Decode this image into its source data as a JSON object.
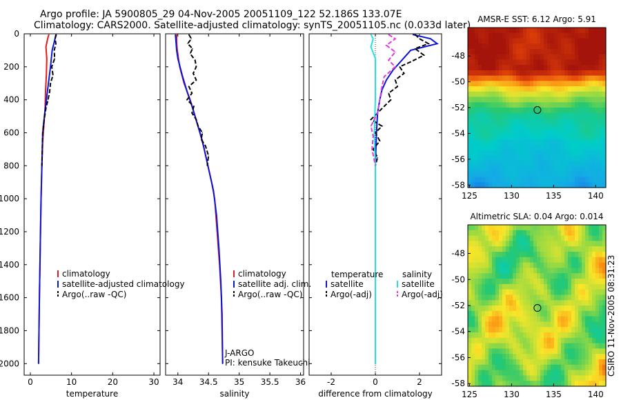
{
  "header": {
    "line1": "Argo profile: JA 5900805_29 04-Nov-2005 20051109_122 52.186S 133.07E",
    "line2": "Climatology: CARS2000. Satellite-adjusted climatology: synTS_20051105.nc (0.033d later)"
  },
  "credit": "CSIRO 11-Nov-2005 08:31:23",
  "colors": {
    "climatology": "#e41a1c",
    "satellite": "#0a14d8",
    "argo": "#000000",
    "sal_satellite": "#22e0e6",
    "sal_argo": "#e03ad8"
  },
  "chart_data": [
    {
      "type": "line",
      "id": "temp",
      "xlabel": "temperature",
      "ylabel": "",
      "xlim": [
        -1.5,
        31.5
      ],
      "ylim": [
        2070,
        0
      ],
      "xticks": [
        0,
        10,
        20,
        30
      ],
      "yticks": [
        0,
        200,
        400,
        600,
        800,
        1000,
        1200,
        1400,
        1600,
        1800,
        2000
      ],
      "legend": [
        "climatology",
        "satellite-adjusted climatology",
        "Argo(..raw -QC)"
      ],
      "legend_position": "lower-right",
      "series": [
        {
          "name": "climatology",
          "color": "#e41a1c",
          "dash": false,
          "points": [
            [
              4.5,
              5
            ],
            [
              4.2,
              30
            ],
            [
              3.8,
              80
            ],
            [
              4.0,
              150
            ],
            [
              3.9,
              250
            ],
            [
              3.7,
              350
            ],
            [
              3.6,
              450
            ],
            [
              3.3,
              550
            ],
            [
              3.0,
              650
            ],
            [
              2.8,
              800
            ],
            [
              2.6,
              1000
            ],
            [
              2.4,
              1300
            ],
            [
              2.2,
              1600
            ],
            [
              2.1,
              1800
            ],
            [
              2.0,
              2000
            ]
          ]
        },
        {
          "name": "satellite-adjusted climatology",
          "color": "#0a14d8",
          "dash": false,
          "points": [
            [
              6.2,
              5
            ],
            [
              5.9,
              40
            ],
            [
              5.3,
              100
            ],
            [
              4.9,
              200
            ],
            [
              4.4,
              300
            ],
            [
              3.9,
              400
            ],
            [
              3.4,
              500
            ],
            [
              3.0,
              600
            ],
            [
              2.8,
              800
            ],
            [
              2.6,
              1000
            ],
            [
              2.4,
              1300
            ],
            [
              2.2,
              1600
            ],
            [
              2.1,
              1800
            ],
            [
              2.0,
              2000
            ]
          ]
        },
        {
          "name": "Argo(..raw -QC)",
          "color": "#000000",
          "dash": true,
          "points": [
            [
              6.3,
              5
            ],
            [
              6.0,
              30
            ],
            [
              6.2,
              60
            ],
            [
              5.8,
              100
            ],
            [
              5.9,
              150
            ],
            [
              5.2,
              200
            ],
            [
              5.5,
              250
            ],
            [
              4.9,
              300
            ],
            [
              4.7,
              350
            ],
            [
              4.3,
              400
            ],
            [
              3.8,
              450
            ],
            [
              3.5,
              500
            ],
            [
              3.2,
              550
            ],
            [
              3.0,
              600
            ],
            [
              2.9,
              700
            ],
            [
              2.8,
              800
            ]
          ]
        }
      ]
    },
    {
      "type": "line",
      "id": "sal",
      "xlabel": "salinity",
      "ylabel": "",
      "xlim": [
        33.8,
        36.05
      ],
      "ylim": [
        2070,
        0
      ],
      "xticks": [
        34,
        34.5,
        35,
        35.5,
        36
      ],
      "yticks": [
        0,
        200,
        400,
        600,
        800,
        1000,
        1200,
        1400,
        1600,
        1800,
        2000
      ],
      "legend": [
        "climatology",
        "satellite adj. clim.",
        "Argo(..raw -QC)"
      ],
      "legend_position": "lower-right",
      "annotation": [
        "J-ARGO",
        "PI: kensuke Takeuchi"
      ],
      "series": [
        {
          "name": "climatology",
          "color": "#e41a1c",
          "dash": false,
          "points": [
            [
              33.98,
              5
            ],
            [
              33.98,
              50
            ],
            [
              33.99,
              100
            ],
            [
              34.03,
              200
            ],
            [
              34.1,
              300
            ],
            [
              34.2,
              400
            ],
            [
              34.28,
              500
            ],
            [
              34.36,
              600
            ],
            [
              34.43,
              700
            ],
            [
              34.49,
              800
            ],
            [
              34.55,
              900
            ],
            [
              34.6,
              1000
            ],
            [
              34.64,
              1200
            ],
            [
              34.68,
              1400
            ],
            [
              34.71,
              1600
            ],
            [
              34.72,
              1800
            ],
            [
              34.73,
              2000
            ]
          ]
        },
        {
          "name": "satellite adj. clim.",
          "color": "#0a14d8",
          "dash": false,
          "points": [
            [
              33.96,
              5
            ],
            [
              33.97,
              50
            ],
            [
              33.98,
              100
            ],
            [
              34.0,
              150
            ],
            [
              34.07,
              250
            ],
            [
              34.15,
              350
            ],
            [
              34.24,
              450
            ],
            [
              34.32,
              550
            ],
            [
              34.4,
              650
            ],
            [
              34.46,
              750
            ],
            [
              34.52,
              850
            ],
            [
              34.58,
              950
            ],
            [
              34.63,
              1100
            ],
            [
              34.67,
              1300
            ],
            [
              34.7,
              1500
            ],
            [
              34.72,
              1700
            ],
            [
              34.73,
              2000
            ]
          ]
        },
        {
          "name": "Argo(..raw -QC)",
          "color": "#000000",
          "dash": true,
          "points": [
            [
              34.18,
              5
            ],
            [
              34.22,
              30
            ],
            [
              34.16,
              60
            ],
            [
              34.24,
              90
            ],
            [
              34.2,
              120
            ],
            [
              34.28,
              160
            ],
            [
              34.3,
              200
            ],
            [
              34.25,
              240
            ],
            [
              34.3,
              280
            ],
            [
              34.18,
              320
            ],
            [
              34.23,
              360
            ],
            [
              34.15,
              400
            ],
            [
              34.26,
              440
            ],
            [
              34.23,
              480
            ],
            [
              34.3,
              520
            ],
            [
              34.33,
              560
            ],
            [
              34.4,
              600
            ],
            [
              34.38,
              640
            ],
            [
              34.45,
              680
            ],
            [
              34.5,
              740
            ],
            [
              34.48,
              800
            ]
          ]
        }
      ]
    },
    {
      "type": "line",
      "id": "diff",
      "xlabel": "difference from climatology",
      "ylabel": "",
      "xlim": [
        -3.0,
        3.0
      ],
      "ylim": [
        2070,
        0
      ],
      "xticks": [
        -2,
        0,
        2
      ],
      "yticks": [
        0,
        200,
        400,
        600,
        800,
        1000,
        1200,
        1400,
        1600,
        1800,
        2000
      ],
      "legend_headers": [
        "temperature",
        "salinity"
      ],
      "legend": [
        "satellite",
        "Argo(-adj)",
        "satellite",
        "Argo(-adj)"
      ],
      "legend_position": "lower-right",
      "series": [
        {
          "name": "temperature satellite",
          "color": "#0a14d8",
          "dash": false,
          "points": [
            [
              1.7,
              5
            ],
            [
              2.5,
              30
            ],
            [
              2.8,
              60
            ],
            [
              1.6,
              100
            ],
            [
              1.2,
              160
            ],
            [
              0.8,
              220
            ],
            [
              0.5,
              280
            ],
            [
              0.3,
              340
            ],
            [
              0.2,
              400
            ],
            [
              0.1,
              480
            ],
            [
              0.05,
              600
            ],
            [
              0.0,
              800
            ],
            [
              0.0,
              1000
            ],
            [
              0.0,
              1400
            ],
            [
              0.0,
              2000
            ]
          ]
        },
        {
          "name": "temperature Argo(-adj)",
          "color": "#000000",
          "dash": true,
          "points": [
            [
              1.8,
              5
            ],
            [
              2.0,
              30
            ],
            [
              2.4,
              60
            ],
            [
              1.8,
              90
            ],
            [
              2.2,
              130
            ],
            [
              1.6,
              170
            ],
            [
              1.1,
              200
            ],
            [
              1.3,
              240
            ],
            [
              0.9,
              280
            ],
            [
              1.0,
              320
            ],
            [
              0.6,
              360
            ],
            [
              0.7,
              400
            ],
            [
              0.4,
              440
            ],
            [
              0.1,
              480
            ],
            [
              -0.2,
              520
            ],
            [
              0.3,
              560
            ],
            [
              0.0,
              600
            ],
            [
              0.2,
              650
            ],
            [
              -0.1,
              700
            ],
            [
              0.1,
              750
            ],
            [
              0.0,
              800
            ]
          ]
        },
        {
          "name": "salinity satellite",
          "color": "#22e0e6",
          "dash": false,
          "points": [
            [
              -0.2,
              5
            ],
            [
              -0.1,
              30
            ],
            [
              -0.2,
              80
            ],
            [
              0.0,
              150
            ],
            [
              0.0,
              400
            ],
            [
              -0.05,
              600
            ],
            [
              0.0,
              800
            ],
            [
              0.0,
              1200
            ],
            [
              0.0,
              2000
            ]
          ]
        },
        {
          "name": "salinity Argo(-adj)",
          "color": "#e03ad8",
          "dash": true,
          "points": [
            [
              0.6,
              5
            ],
            [
              0.9,
              30
            ],
            [
              0.5,
              70
            ],
            [
              0.9,
              110
            ],
            [
              0.6,
              160
            ],
            [
              0.9,
              200
            ],
            [
              0.4,
              260
            ],
            [
              0.3,
              320
            ],
            [
              0.2,
              400
            ],
            [
              0.1,
              480
            ],
            [
              -0.2,
              560
            ],
            [
              -0.1,
              620
            ],
            [
              -0.15,
              700
            ],
            [
              0.0,
              800
            ]
          ]
        }
      ]
    },
    {
      "type": "heatmap",
      "id": "sst_map",
      "title": "AMSR-E SST: 6.12 Argo: 5.91",
      "xlim": [
        124.8,
        141.2
      ],
      "ylim": [
        -58.2,
        -45.8
      ],
      "xticks": [
        125,
        130,
        135,
        140
      ],
      "yticks": [
        -48,
        -50,
        -52,
        -54,
        -56,
        -58
      ],
      "marker": {
        "lon": 133.07,
        "lat": -52.186
      }
    },
    {
      "type": "heatmap",
      "id": "sla_map",
      "title": "Altimetric SLA: 0.04 Argo: 0.014",
      "xlim": [
        124.8,
        141.2
      ],
      "ylim": [
        -58.2,
        -45.8
      ],
      "xticks": [
        125,
        130,
        135,
        140
      ],
      "yticks": [
        -48,
        -50,
        -52,
        -54,
        -56,
        -58
      ],
      "marker": {
        "lon": 133.07,
        "lat": -52.186
      }
    }
  ]
}
